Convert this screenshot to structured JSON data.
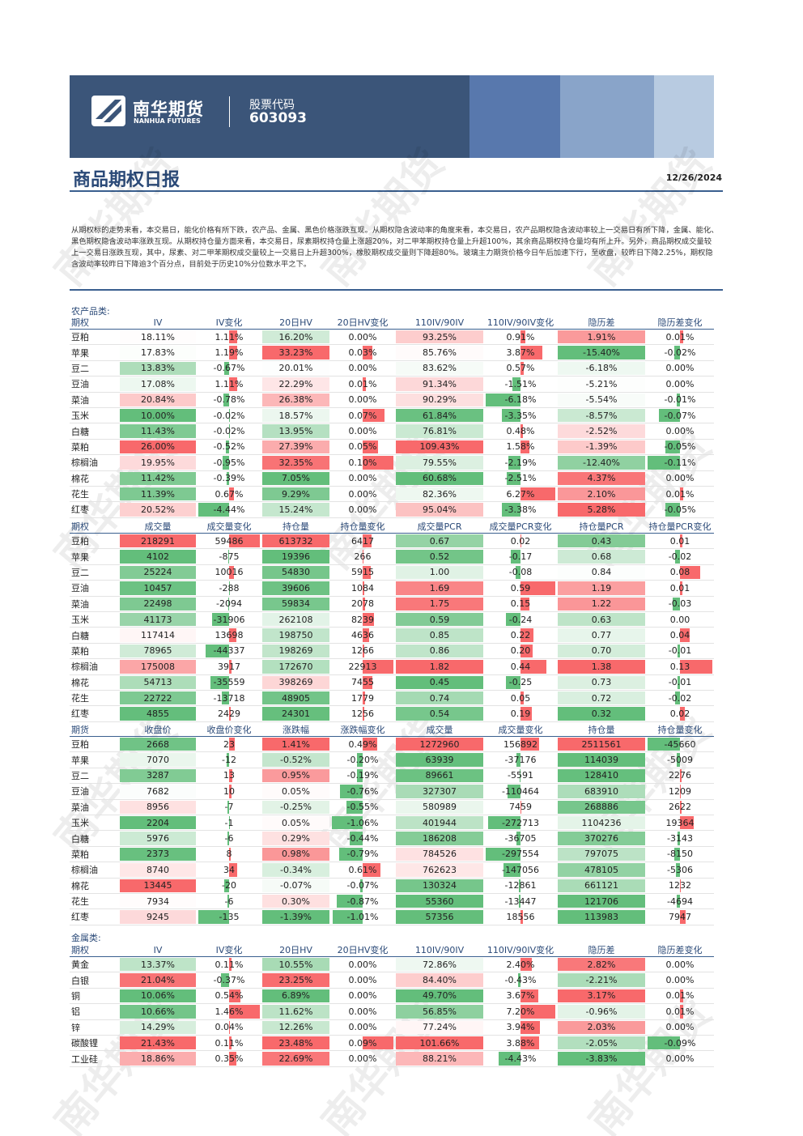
{
  "header": {
    "logo_cn": "南华期货",
    "logo_en": "NANHUA FUTURES",
    "code_label": "股票代码",
    "code": "603093"
  },
  "title": "商品期权日报",
  "date": "12/26/2024",
  "summary": "从期权标的走势来看，本交易日，能化价格有所下跌，农产品、金属、黑色价格涨跌互现。从期权隐含波动率的角度来看，本交易日，农产品期权隐含波动率较上一交易日有所下降，金属、能化、黑色期权隐含波动率涨跌互现。从期权持仓量方面来看，本交易日，尿素期权持仓量上涨超20%，对二甲苯期权持仓量上升超100%，其余商品期权持仓量均有所上升。另外，商品期权成交量较上一交易日涨跌互现，其中，尿素、对二甲苯期权成交量较上一交易日上升超300%，橡胶期权成交量则下降超80%。玻璃主力期货价格今日午后加速下行，至收盘，较昨日下降2.25%，期权隐含波动率较昨日下降逾3个百分点，目前处于历史10%分位数水平之下。",
  "watermark": "南华期货",
  "sections": [
    {
      "label": "农产品类:",
      "tables": [
        {
          "header": [
            "期权",
            "IV",
            "IV变化",
            "20日HV",
            "20日HV变化",
            "110IV/90IV",
            "110IV/90IV变化",
            "隐历差",
            "隐历差变化"
          ],
          "rows": [
            [
              "豆粕",
              "18.11%",
              "1.11%",
              "16.20%",
              "0.00%",
              "93.25%",
              "0.91%",
              "1.91%",
              "0.01%"
            ],
            [
              "苹果",
              "17.83%",
              "1.19%",
              "33.23%",
              "0.03%",
              "85.76%",
              "3.87%",
              "-15.40%",
              "-0.02%"
            ],
            [
              "豆二",
              "13.83%",
              "-0.67%",
              "20.01%",
              "0.00%",
              "83.62%",
              "0.57%",
              "-6.18%",
              "0.00%"
            ],
            [
              "豆油",
              "17.08%",
              "1.11%",
              "22.29%",
              "0.01%",
              "91.34%",
              "-1.51%",
              "-5.21%",
              "0.00%"
            ],
            [
              "菜油",
              "20.84%",
              "-0.78%",
              "26.38%",
              "0.00%",
              "90.29%",
              "-6.18%",
              "-5.54%",
              "-0.01%"
            ],
            [
              "玉米",
              "10.00%",
              "-0.02%",
              "18.57%",
              "0.07%",
              "61.84%",
              "-3.35%",
              "-8.57%",
              "-0.07%"
            ],
            [
              "白糖",
              "11.43%",
              "-0.02%",
              "13.95%",
              "0.00%",
              "76.81%",
              "0.48%",
              "-2.52%",
              "0.00%"
            ],
            [
              "菜粕",
              "26.00%",
              "-0.52%",
              "27.39%",
              "0.05%",
              "109.43%",
              "1.58%",
              "-1.39%",
              "-0.05%"
            ],
            [
              "棕榈油",
              "19.95%",
              "-0.95%",
              "32.35%",
              "0.10%",
              "79.55%",
              "-2.19%",
              "-12.40%",
              "-0.11%"
            ],
            [
              "棉花",
              "11.42%",
              "-0.39%",
              "7.05%",
              "0.00%",
              "60.68%",
              "-2.51%",
              "4.37%",
              "0.00%"
            ],
            [
              "花生",
              "11.39%",
              "0.67%",
              "9.29%",
              "0.00%",
              "82.36%",
              "6.27%",
              "2.10%",
              "0.01%"
            ],
            [
              "红枣",
              "20.52%",
              "-4.44%",
              "15.24%",
              "0.00%",
              "95.04%",
              "-3.38%",
              "5.28%",
              "-0.05%"
            ]
          ]
        },
        {
          "header": [
            "期权",
            "成交量",
            "成交量变化",
            "持仓量",
            "持仓量变化",
            "成交量PCR",
            "成交量PCR变化",
            "持仓量PCR",
            "持仓量PCR变化"
          ],
          "rows": [
            [
              "豆粕",
              "218291",
              "59486",
              "613732",
              "6417",
              "0.67",
              "0.02",
              "0.43",
              "0.01"
            ],
            [
              "苹果",
              "4102",
              "-875",
              "19396",
              "266",
              "0.52",
              "-0.17",
              "0.68",
              "-0.02"
            ],
            [
              "豆二",
              "25224",
              "10016",
              "54830",
              "5915",
              "1.00",
              "-0.08",
              "0.84",
              "0.08"
            ],
            [
              "豆油",
              "10457",
              "-288",
              "39606",
              "1084",
              "1.69",
              "0.59",
              "1.19",
              "0.01"
            ],
            [
              "菜油",
              "22498",
              "-2094",
              "59834",
              "2078",
              "1.75",
              "0.15",
              "1.22",
              "-0.03"
            ],
            [
              "玉米",
              "41173",
              "-31906",
              "262108",
              "8239",
              "0.59",
              "-0.24",
              "0.63",
              "0.00"
            ],
            [
              "白糖",
              "117414",
              "13698",
              "198750",
              "4636",
              "0.85",
              "0.22",
              "0.77",
              "0.04"
            ],
            [
              "菜粕",
              "78965",
              "-44337",
              "198269",
              "1266",
              "0.86",
              "0.20",
              "0.70",
              "-0.01"
            ],
            [
              "棕榈油",
              "175008",
              "3917",
              "172670",
              "22913",
              "1.82",
              "0.44",
              "1.38",
              "0.13"
            ],
            [
              "棉花",
              "54713",
              "-35559",
              "398269",
              "7455",
              "0.45",
              "-0.25",
              "0.73",
              "-0.01"
            ],
            [
              "花生",
              "22722",
              "-13718",
              "48905",
              "1779",
              "0.74",
              "0.05",
              "0.72",
              "-0.02"
            ],
            [
              "红枣",
              "4855",
              "2429",
              "24301",
              "1256",
              "0.54",
              "0.19",
              "0.32",
              "0.02"
            ]
          ]
        },
        {
          "header": [
            "期货",
            "收盘价",
            "收盘价变化",
            "涨跌幅",
            "涨跌幅变化",
            "成交量",
            "成交量变化",
            "持仓量",
            "持仓量变化"
          ],
          "rows": [
            [
              "豆粕",
              "2668",
              "23",
              "1.41%",
              "0.49%",
              "1272960",
              "156892",
              "2511561",
              "-45660"
            ],
            [
              "苹果",
              "7070",
              "-12",
              "-0.52%",
              "-0.20%",
              "63939",
              "-37176",
              "114039",
              "-5009"
            ],
            [
              "豆二",
              "3287",
              "13",
              "0.95%",
              "-0.19%",
              "89661",
              "-5591",
              "128410",
              "2276"
            ],
            [
              "豆油",
              "7682",
              "10",
              "0.05%",
              "-0.76%",
              "327307",
              "-110464",
              "683910",
              "1209"
            ],
            [
              "菜油",
              "8956",
              "-7",
              "-0.25%",
              "-0.55%",
              "580989",
              "7459",
              "268886",
              "2622"
            ],
            [
              "玉米",
              "2204",
              "-1",
              "0.05%",
              "-1.06%",
              "401944",
              "-272713",
              "1104236",
              "19364"
            ],
            [
              "白糖",
              "5976",
              "-6",
              "0.29%",
              "-0.44%",
              "186208",
              "-36705",
              "370276",
              "-3143"
            ],
            [
              "菜粕",
              "2373",
              "8",
              "0.98%",
              "-0.79%",
              "784526",
              "-297554",
              "797075",
              "-8150"
            ],
            [
              "棕榈油",
              "8740",
              "34",
              "-0.34%",
              "0.61%",
              "762623",
              "-147056",
              "478105",
              "-5306"
            ],
            [
              "棉花",
              "13445",
              "-20",
              "-0.07%",
              "-0.07%",
              "130324",
              "-12861",
              "661121",
              "1232"
            ],
            [
              "花生",
              "7934",
              "-6",
              "0.30%",
              "-0.87%",
              "55360",
              "-13447",
              "121706",
              "-4694"
            ],
            [
              "红枣",
              "9245",
              "-135",
              "-1.39%",
              "-1.01%",
              "57356",
              "18556",
              "113983",
              "7947"
            ]
          ]
        }
      ]
    },
    {
      "label": "金属类:",
      "tables": [
        {
          "header": [
            "期权",
            "IV",
            "IV变化",
            "20日HV",
            "20日HV变化",
            "110IV/90IV",
            "110IV/90IV变化",
            "隐历差",
            "隐历差变化"
          ],
          "rows": [
            [
              "黄金",
              "13.37%",
              "0.11%",
              "10.55%",
              "0.00%",
              "72.86%",
              "2.40%",
              "2.82%",
              "0.00%"
            ],
            [
              "白银",
              "21.04%",
              "-0.37%",
              "23.25%",
              "0.00%",
              "84.40%",
              "-0.43%",
              "-2.21%",
              "0.00%"
            ],
            [
              "铜",
              "10.06%",
              "0.54%",
              "6.89%",
              "0.00%",
              "49.70%",
              "3.67%",
              "3.17%",
              "0.01%"
            ],
            [
              "铝",
              "10.66%",
              "1.46%",
              "11.62%",
              "0.00%",
              "56.85%",
              "7.20%",
              "-0.96%",
              "0.01%"
            ],
            [
              "锌",
              "14.29%",
              "0.04%",
              "12.26%",
              "0.00%",
              "77.24%",
              "3.94%",
              "2.03%",
              "0.00%"
            ],
            [
              "碳酸锂",
              "21.43%",
              "0.11%",
              "23.48%",
              "0.09%",
              "101.66%",
              "3.88%",
              "-2.05%",
              "-0.09%"
            ],
            [
              "工业硅",
              "18.86%",
              "0.35%",
              "22.69%",
              "0.00%",
              "88.21%",
              "-4.43%",
              "-3.83%",
              "0.00%"
            ]
          ]
        }
      ]
    }
  ]
}
